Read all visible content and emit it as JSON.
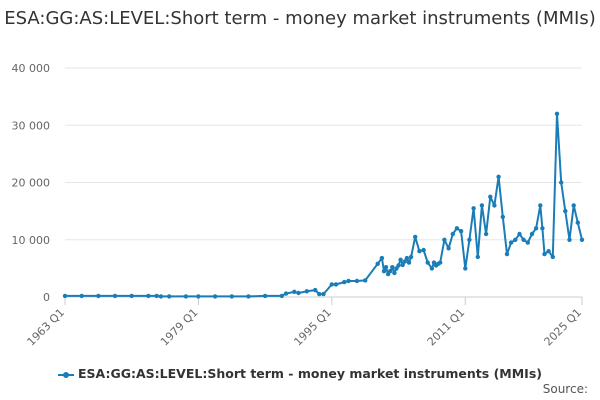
{
  "chart_data": {
    "type": "line",
    "title": "ESA:GG:AS:LEVEL:Short term - money market instruments (MMIs)",
    "xlabel": "",
    "ylabel": "",
    "ylim": [
      0,
      40000
    ],
    "y_ticks": [
      0,
      10000,
      20000,
      30000,
      40000
    ],
    "y_tick_labels": [
      "0",
      "10 000",
      "20 000",
      "30 000",
      "40 000"
    ],
    "x_ticks": [
      1963,
      1979,
      1995,
      2011,
      2025
    ],
    "x_tick_labels": [
      "1963 Q1",
      "1979 Q1",
      "1995 Q1",
      "2011 Q1",
      "2025 Q1"
    ],
    "grid": "horizontal",
    "legend_position": "bottom",
    "color": "#1a7db8",
    "series": [
      {
        "name": "ESA:GG:AS:LEVEL:Short term - money market instruments (MMIs)",
        "x": [
          1963,
          1965,
          1967,
          1969,
          1971,
          1973,
          1974,
          1974.5,
          1975.5,
          1977.5,
          1979,
          1981,
          1983,
          1985,
          1987,
          1989,
          1989.5,
          1990.5,
          1991,
          1992,
          1993,
          1993.5,
          1994,
          1995,
          1995.5,
          1996.5,
          1997,
          1998,
          1999,
          2000.5,
          2001,
          2001.25,
          2001.5,
          2001.75,
          2002,
          2002.25,
          2002.5,
          2002.75,
          2003,
          2003.25,
          2003.5,
          2003.75,
          2004,
          2004.25,
          2004.5,
          2005,
          2005.5,
          2006,
          2006.5,
          2007,
          2007.25,
          2007.5,
          2007.75,
          2008,
          2008.5,
          2009,
          2009.5,
          2010,
          2010.5,
          2011,
          2011.5,
          2012,
          2012.5,
          2013,
          2013.5,
          2014,
          2014.5,
          2015,
          2015.5,
          2016,
          2016.5,
          2017,
          2017.5,
          2018,
          2018.5,
          2019,
          2019.5,
          2020,
          2020.25,
          2020.5,
          2021,
          2021.5,
          2022,
          2022.5,
          2023,
          2023.5,
          2024,
          2024.5,
          2025
        ],
        "values": [
          200,
          200,
          200,
          200,
          200,
          200,
          200,
          100,
          100,
          100,
          100,
          100,
          100,
          100,
          200,
          200,
          600,
          900,
          700,
          1000,
          1200,
          500,
          500,
          2200,
          2200,
          2600,
          2800,
          2800,
          2900,
          5800,
          6800,
          4500,
          5200,
          4000,
          4500,
          5200,
          4200,
          5000,
          5500,
          6500,
          5600,
          6200,
          6800,
          6000,
          7000,
          10500,
          8000,
          8200,
          6000,
          5000,
          6000,
          5500,
          5800,
          6000,
          10000,
          8500,
          11000,
          12000,
          11500,
          5000,
          10000,
          15500,
          7000,
          16000,
          11000,
          17500,
          16000,
          21000,
          14000,
          7500,
          9500,
          10000,
          11000,
          10000,
          9500,
          11000,
          12000,
          16000,
          12000,
          7500,
          8000,
          7000,
          32000,
          20000,
          15000,
          10000,
          16000,
          13000,
          10000
        ]
      }
    ]
  },
  "legend": {
    "label": "ESA:GG:AS:LEVEL:Short term - money market instruments (MMIs)"
  },
  "footer": {
    "source_label": "Source:"
  }
}
